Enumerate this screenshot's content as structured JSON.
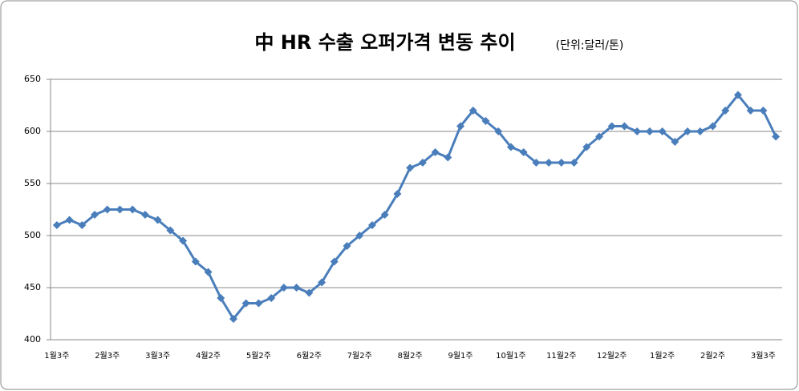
{
  "chart_data": {
    "type": "line",
    "title": "中 HR 수출 오퍼가격 변동 추이",
    "subtitle": "(단위:달러/톤)",
    "categories": [
      "1월3주",
      null,
      null,
      null,
      "2월3주",
      null,
      null,
      null,
      "3월3주",
      null,
      null,
      null,
      "4월2주",
      null,
      null,
      null,
      "5월2주",
      null,
      null,
      null,
      "6월2주",
      null,
      null,
      null,
      "7월2주",
      null,
      null,
      null,
      "8월2주",
      null,
      null,
      null,
      "9월1주",
      null,
      null,
      null,
      "10월1주",
      null,
      null,
      null,
      "11월2주",
      null,
      null,
      null,
      "12월2주",
      null,
      null,
      null,
      "1월2주",
      null,
      null,
      null,
      "2월2주",
      null,
      null,
      null,
      "3월3주",
      null
    ],
    "values": [
      510,
      515,
      510,
      520,
      525,
      525,
      525,
      520,
      515,
      505,
      495,
      475,
      465,
      440,
      420,
      435,
      435,
      440,
      450,
      450,
      445,
      455,
      475,
      490,
      500,
      510,
      520,
      540,
      565,
      570,
      580,
      575,
      605,
      620,
      610,
      600,
      585,
      580,
      570,
      570,
      570,
      570,
      585,
      595,
      605,
      605,
      600,
      600,
      600,
      590,
      600,
      600,
      605,
      620,
      635,
      620,
      620,
      595
    ],
    "color": "#4a7ebb",
    "ylim": [
      400,
      650
    ],
    "yticks": [
      400,
      450,
      500,
      550,
      600,
      650
    ],
    "grid": true
  }
}
